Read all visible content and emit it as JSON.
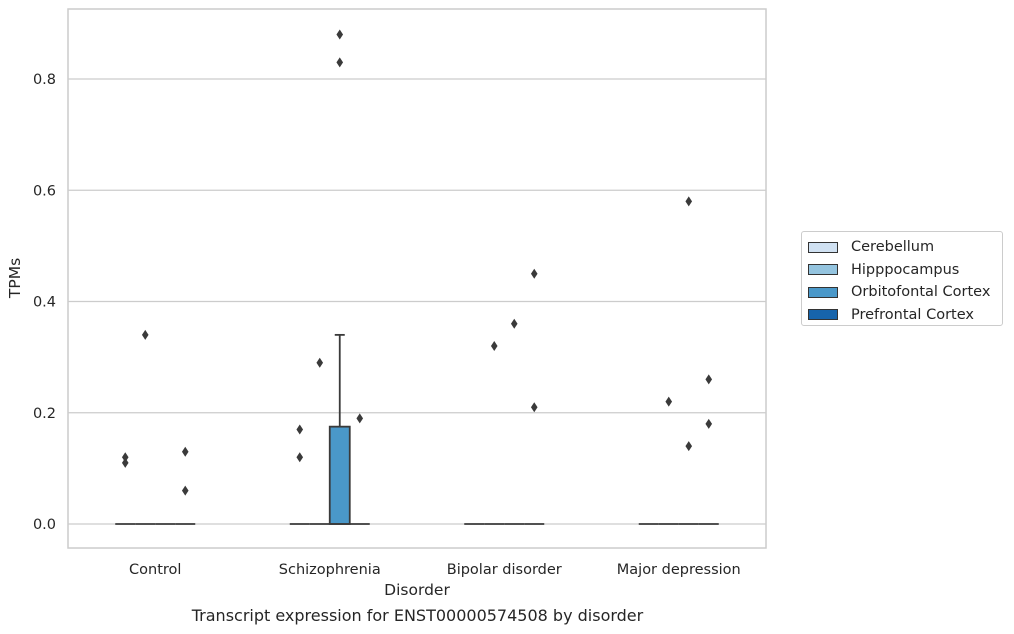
{
  "caption": "Transcript expression for ENST00000574508 by disorder",
  "colors": {
    "Cerebellum": "#d0e1f2",
    "Hipppocampus": "#94c4df",
    "Orbitofontal Cortex": "#4a98c9",
    "Prefrontal Cortex": "#1764ab",
    "grid": "#cccccc",
    "axis_text": "#262626",
    "box_edge": "#3a3a3a"
  },
  "chart_data": {
    "type": "box",
    "xlabel": "Disorder",
    "ylabel": "TPMs",
    "ylim": [
      -0.042,
      0.927
    ],
    "yticks": [
      0.0,
      0.2,
      0.4,
      0.6,
      0.8
    ],
    "ytick_labels": [
      "0.0",
      "0.2",
      "0.4",
      "0.6",
      "0.8"
    ],
    "grid": true,
    "legend_position": "right",
    "categories": [
      "Control",
      "Schizophrenia",
      "Bipolar disorder",
      "Major depression"
    ],
    "series": [
      {
        "name": "Cerebellum",
        "boxes": [
          {
            "q1": 0,
            "median": 0,
            "q3": 0,
            "whisker_low": 0,
            "whisker_high": 0,
            "outliers": [
              0.12,
              0.11
            ]
          },
          {
            "q1": 0,
            "median": 0,
            "q3": 0,
            "whisker_low": 0,
            "whisker_high": 0,
            "outliers": [
              0.17,
              0.12
            ]
          },
          {
            "q1": 0,
            "median": 0,
            "q3": 0,
            "whisker_low": 0,
            "whisker_high": 0,
            "outliers": []
          },
          {
            "q1": 0,
            "median": 0,
            "q3": 0,
            "whisker_low": 0,
            "whisker_high": 0,
            "outliers": []
          }
        ]
      },
      {
        "name": "Hipppocampus",
        "boxes": [
          {
            "q1": 0,
            "median": 0,
            "q3": 0,
            "whisker_low": 0,
            "whisker_high": 0,
            "outliers": [
              0.34
            ]
          },
          {
            "q1": 0,
            "median": 0,
            "q3": 0,
            "whisker_low": 0,
            "whisker_high": 0,
            "outliers": [
              0.29
            ]
          },
          {
            "q1": 0,
            "median": 0,
            "q3": 0,
            "whisker_low": 0,
            "whisker_high": 0,
            "outliers": [
              0.32
            ]
          },
          {
            "q1": 0,
            "median": 0,
            "q3": 0,
            "whisker_low": 0,
            "whisker_high": 0,
            "outliers": [
              0.22
            ]
          }
        ]
      },
      {
        "name": "Orbitofontal Cortex",
        "boxes": [
          {
            "q1": 0,
            "median": 0,
            "q3": 0,
            "whisker_low": 0,
            "whisker_high": 0,
            "outliers": []
          },
          {
            "q1": 0,
            "median": 0,
            "q3": 0.175,
            "whisker_low": 0,
            "whisker_high": 0.34,
            "outliers": [
              0.88,
              0.83
            ]
          },
          {
            "q1": 0,
            "median": 0,
            "q3": 0,
            "whisker_low": 0,
            "whisker_high": 0,
            "outliers": [
              0.36
            ]
          },
          {
            "q1": 0,
            "median": 0,
            "q3": 0,
            "whisker_low": 0,
            "whisker_high": 0,
            "outliers": [
              0.58,
              0.14
            ]
          }
        ]
      },
      {
        "name": "Prefrontal Cortex",
        "boxes": [
          {
            "q1": 0,
            "median": 0,
            "q3": 0,
            "whisker_low": 0,
            "whisker_high": 0,
            "outliers": [
              0.13,
              0.06
            ]
          },
          {
            "q1": 0,
            "median": 0,
            "q3": 0,
            "whisker_low": 0,
            "whisker_high": 0,
            "outliers": [
              0.19
            ]
          },
          {
            "q1": 0,
            "median": 0,
            "q3": 0,
            "whisker_low": 0,
            "whisker_high": 0,
            "outliers": [
              0.45,
              0.21
            ]
          },
          {
            "q1": 0,
            "median": 0,
            "q3": 0,
            "whisker_low": 0,
            "whisker_high": 0,
            "outliers": [
              0.26,
              0.18
            ]
          }
        ]
      }
    ]
  }
}
